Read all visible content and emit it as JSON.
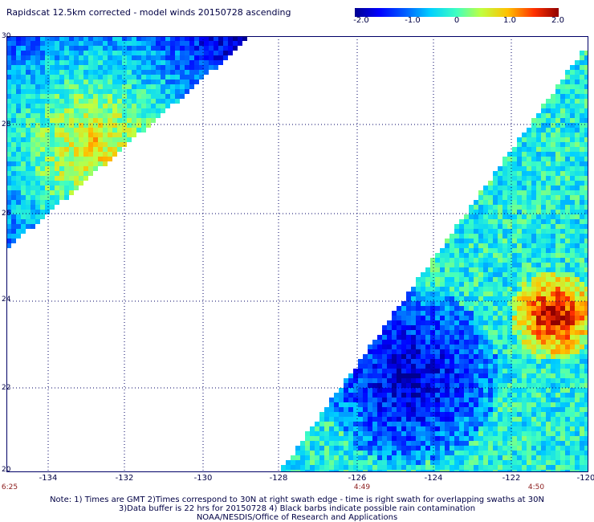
{
  "title": "Rapidscat 12.5km corrected - model winds 20150728 ascending",
  "colorbar": {
    "ticks": [
      "-2.0",
      "-1.0",
      "0",
      "1.0",
      "2.0"
    ],
    "range": [
      -2.0,
      2.0
    ]
  },
  "map": {
    "lon_range": [
      -135,
      -120
    ],
    "lat_range": [
      20,
      30
    ],
    "lat_labels": [
      "30",
      "28",
      "26",
      "24",
      "22",
      "20"
    ],
    "lon_labels": [
      "-134",
      "-132",
      "-130",
      "-128",
      "-126",
      "-124",
      "-122",
      "-120"
    ],
    "grid": true,
    "time_labels": [
      {
        "text": "6:25",
        "lon": -134.9
      },
      {
        "text": "4:49",
        "lon": -126
      },
      {
        "text": "4:50",
        "lon": -121.8
      }
    ],
    "regions": [
      {
        "type": "swath_left_triangle"
      },
      {
        "type": "swath_right_wedge"
      }
    ]
  },
  "notes": {
    "line1": "Note: 1) Times are GMT 2)Times correspond to 30N at right swath edge - time is right swath for overlapping swaths at 30N",
    "line2": "3)Data buffer is 22 hrs for 20150728 4) Black barbs indicate possible rain contamination",
    "line3": "NOAA/NESDIS/Office of Research and Applications"
  }
}
